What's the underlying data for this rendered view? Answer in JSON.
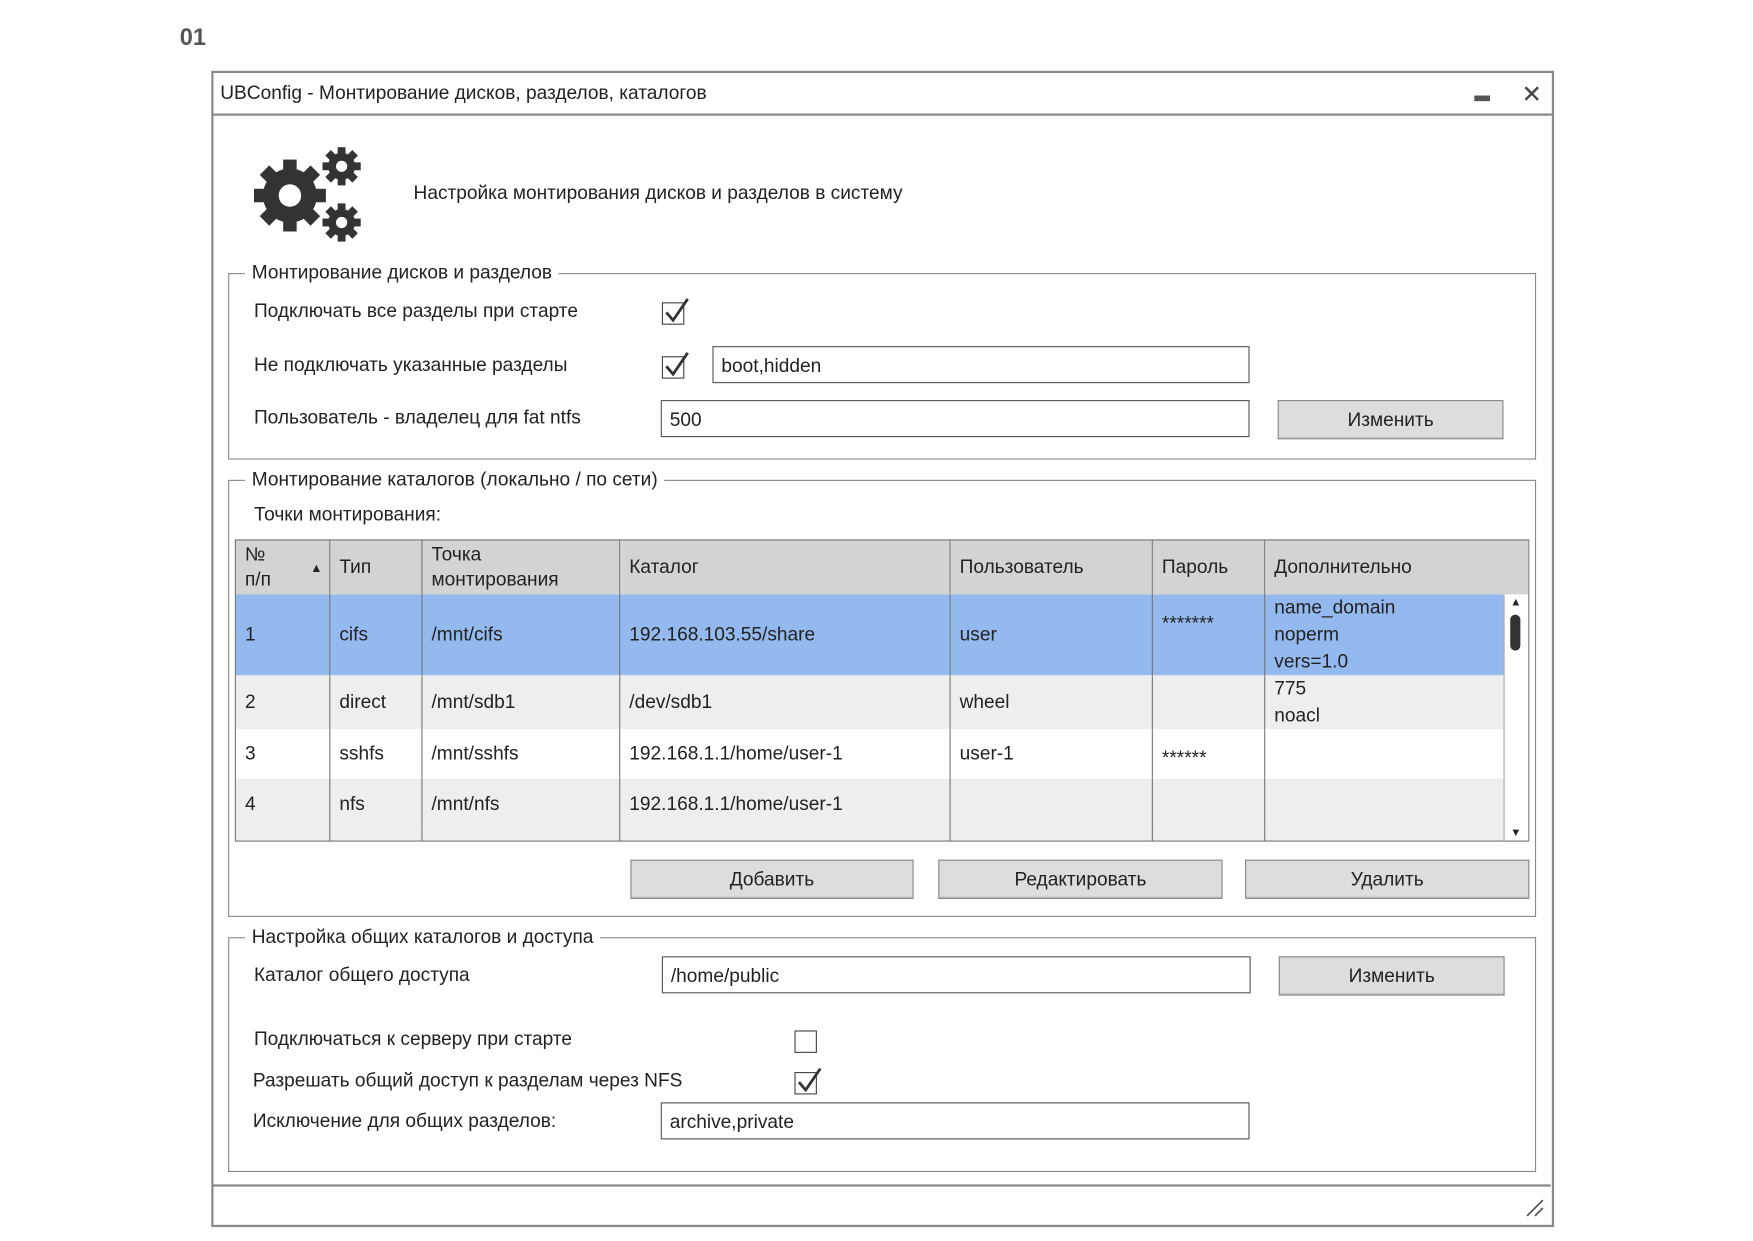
{
  "page_number": "01",
  "window": {
    "title": "UBConfig - Монтирование дисков, разделов, каталогов",
    "header_text": "Настройка монтирования дисков и разделов в систему",
    "icons": {
      "app": "gears-icon",
      "minimize": "minimize-icon",
      "close": "close-icon",
      "resize": "resize-grip-icon"
    }
  },
  "disks_group": {
    "legend": "Монтирование дисков и разделов",
    "mount_all_label": "Подключать все разделы при старте",
    "mount_all_checked": true,
    "exclude_label": "Не подключать указанные разделы",
    "exclude_checked": true,
    "exclude_value": "boot,hidden",
    "owner_label": "Пользователь - владелец для fat ntfs",
    "owner_value": "500",
    "change_button": "Изменить"
  },
  "dirs_group": {
    "legend": "Монтирование каталогов (локально / по сети)",
    "points_label": "Точки монтирования:",
    "columns": [
      "№\nп/п",
      "Тип",
      "Точка\nмонтирования",
      "Каталог",
      "Пользователь",
      "Пароль",
      "Дополнительно"
    ],
    "sort": "ascending",
    "rows": [
      {
        "n": "1",
        "type": "cifs",
        "mount": "/mnt/cifs",
        "dir": "192.168.103.55/share",
        "user": "user",
        "password": "*******",
        "extra": "name_domain\nnoperm\nvers=1.0",
        "selected": true
      },
      {
        "n": "2",
        "type": "direct",
        "mount": "/mnt/sdb1",
        "dir": "/dev/sdb1",
        "user": "wheel",
        "password": "",
        "extra": "775\nnoacl"
      },
      {
        "n": "3",
        "type": "sshfs",
        "mount": "/mnt/sshfs",
        "dir": "192.168.1.1/home/user-1",
        "user": "user-1",
        "password": "******",
        "extra": ""
      },
      {
        "n": "4",
        "type": "nfs",
        "mount": "/mnt/nfs",
        "dir": "192.168.1.1/home/user-1",
        "user": "",
        "password": "",
        "extra": ""
      }
    ],
    "add_button": "Добавить",
    "edit_button": "Редактировать",
    "delete_button": "Удалить"
  },
  "share_group": {
    "legend": "Настройка общих каталогов и доступа",
    "public_label": "Каталог общего доступа",
    "public_value": "/home/public",
    "change_button": "Изменить",
    "connect_label": "Подключаться к серверу при старте",
    "connect_checked": false,
    "nfs_label": "Разрешать общий доступ к разделам через NFS",
    "nfs_checked": true,
    "exclusions_label": "Исключение для общих разделов:",
    "exclusions_value": "archive,private"
  },
  "colors": {
    "selected_row": "#93b9ef",
    "header": "#d3d3d3",
    "alt_row": "#eeeeee",
    "button": "#dddddd"
  }
}
